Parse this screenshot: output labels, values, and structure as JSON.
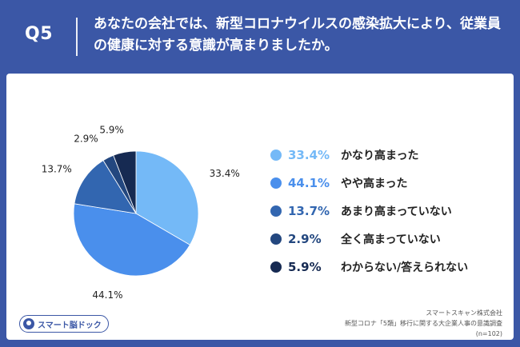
{
  "header": {
    "qnum": "Q5",
    "question": "あなたの会社では、新型コロナウイルスの感染拡大により、従業員の健康に対する意識が高まりましたか。"
  },
  "chart_data": {
    "type": "pie",
    "title": "",
    "legend_position": "right",
    "slices": [
      {
        "label": "かなり高まった",
        "value": 33.4,
        "display": "33.4%",
        "color": "#74b9f7"
      },
      {
        "label": "やや高まった",
        "value": 44.1,
        "display": "44.1%",
        "color": "#4a8fec"
      },
      {
        "label": "あまり高まっていない",
        "value": 13.7,
        "display": "13.7%",
        "color": "#3266b0"
      },
      {
        "label": "全く高まっていない",
        "value": 2.9,
        "display": "2.9%",
        "color": "#23477f"
      },
      {
        "label": "わからない/答えられない",
        "value": 5.9,
        "display": "5.9%",
        "color": "#162a52"
      }
    ]
  },
  "footer": {
    "logo_text": "スマート脳ドック",
    "source_line1": "スマートスキャン株式会社",
    "source_line2": "新型コロナ「5類」移行に関する大企業人事の意識調査",
    "source_line3": "(n=102)"
  }
}
